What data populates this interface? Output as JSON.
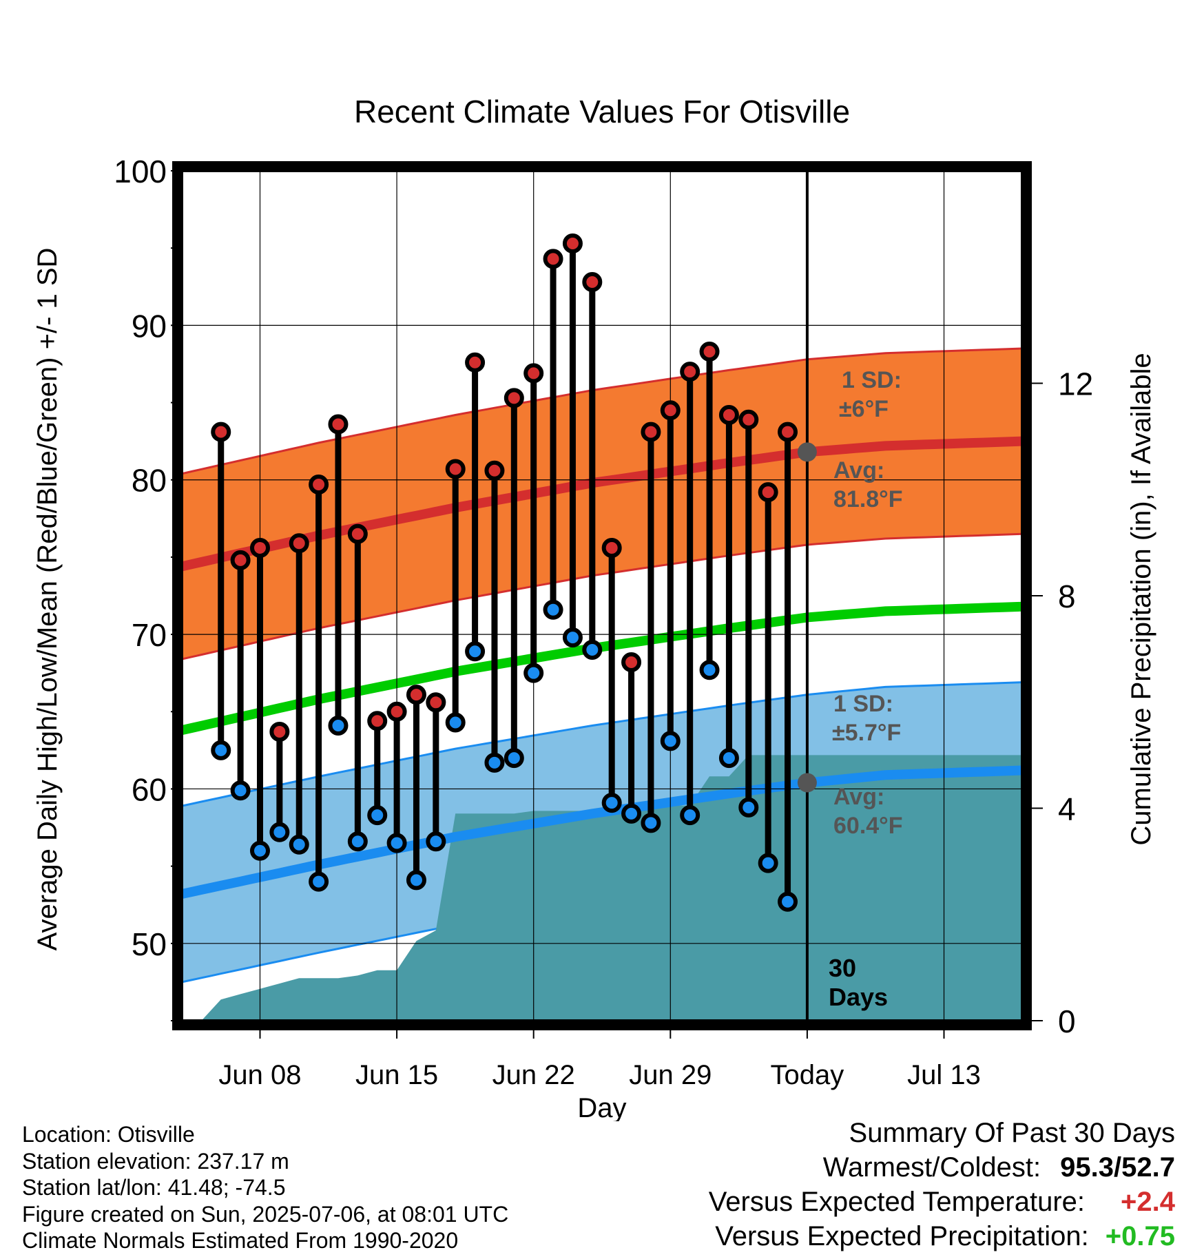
{
  "chart_data": {
    "type": "line",
    "title": "Recent Climate Values For Otisville",
    "xlabel": "Day",
    "ylabel": "Average Daily High/Low/Mean (Red/Blue/Green) +/- 1 SD",
    "y2label": "Cumulative Precipitation (in), If Available",
    "ylim": [
      45,
      100
    ],
    "y2lim": [
      0,
      16
    ],
    "xlim": [
      "2025-06-04",
      "2025-07-17"
    ],
    "grid": true,
    "x_ticks": [
      "Jun 08",
      "Jun 15",
      "Jun 22",
      "Jun 29",
      "Today",
      "Jul 13"
    ],
    "y_ticks": [
      "50",
      "60",
      "70",
      "80",
      "90",
      "100"
    ],
    "y2_ticks": [
      "0",
      "4",
      "8",
      "12"
    ],
    "today": "2025-07-06",
    "days_label": "30\nDays",
    "observed": {
      "dates": [
        "2025-06-06",
        "2025-06-07",
        "2025-06-08",
        "2025-06-09",
        "2025-06-10",
        "2025-06-11",
        "2025-06-12",
        "2025-06-13",
        "2025-06-14",
        "2025-06-15",
        "2025-06-16",
        "2025-06-17",
        "2025-06-18",
        "2025-06-19",
        "2025-06-20",
        "2025-06-21",
        "2025-06-22",
        "2025-06-23",
        "2025-06-24",
        "2025-06-25",
        "2025-06-26",
        "2025-06-27",
        "2025-06-28",
        "2025-06-29",
        "2025-06-30",
        "2025-07-01",
        "2025-07-02",
        "2025-07-03",
        "2025-07-04",
        "2025-07-05"
      ],
      "high": [
        83.1,
        74.8,
        75.6,
        63.7,
        75.9,
        79.7,
        83.6,
        76.5,
        64.4,
        65.0,
        66.1,
        65.6,
        80.7,
        87.6,
        80.6,
        85.3,
        86.9,
        94.3,
        95.3,
        92.8,
        75.6,
        68.2,
        83.1,
        84.5,
        87.0,
        88.3,
        84.2,
        83.9,
        79.2,
        83.1
      ],
      "low": [
        62.5,
        59.9,
        56.0,
        57.2,
        56.4,
        54.0,
        64.1,
        56.6,
        58.3,
        56.5,
        54.1,
        56.6,
        64.3,
        68.9,
        61.7,
        62.0,
        67.5,
        71.6,
        69.8,
        69.0,
        59.1,
        58.4,
        57.8,
        63.1,
        58.3,
        67.7,
        62.0,
        58.8,
        55.2,
        52.7
      ]
    },
    "normals": {
      "dates": [
        "2025-06-04",
        "2025-06-11",
        "2025-06-18",
        "2025-06-25",
        "2025-07-02",
        "2025-07-06",
        "2025-07-10",
        "2025-07-17"
      ],
      "avg_high": [
        74.4,
        76.4,
        78.2,
        79.8,
        81.1,
        81.8,
        82.2,
        82.5
      ],
      "high_sd": 6,
      "avg_low": [
        53.2,
        55.1,
        56.9,
        58.4,
        59.7,
        60.4,
        60.9,
        61.2
      ],
      "low_sd": 5.7,
      "avg_mean": [
        63.8,
        65.8,
        67.6,
        69.1,
        70.4,
        71.1,
        71.5,
        71.8
      ]
    },
    "precipitation": {
      "dates": [
        "2025-06-05",
        "2025-06-06",
        "2025-06-07",
        "2025-06-08",
        "2025-06-09",
        "2025-06-10",
        "2025-06-11",
        "2025-06-12",
        "2025-06-13",
        "2025-06-14",
        "2025-06-15",
        "2025-06-16",
        "2025-06-17",
        "2025-06-18",
        "2025-06-19",
        "2025-06-20",
        "2025-06-21",
        "2025-06-22",
        "2025-06-23",
        "2025-06-24",
        "2025-06-25",
        "2025-06-26",
        "2025-06-27",
        "2025-06-28",
        "2025-06-29",
        "2025-06-30",
        "2025-07-01",
        "2025-07-02",
        "2025-07-03",
        "2025-07-04",
        "2025-07-05",
        "2025-07-17"
      ],
      "cumulative": [
        0.0,
        0.4,
        0.5,
        0.6,
        0.7,
        0.8,
        0.8,
        0.8,
        0.85,
        0.95,
        0.95,
        1.5,
        1.7,
        3.9,
        3.9,
        3.9,
        3.9,
        3.95,
        3.95,
        3.95,
        3.95,
        4.05,
        4.05,
        4.05,
        4.05,
        4.05,
        4.6,
        4.6,
        5.0,
        5.0,
        5.0,
        5.0
      ]
    },
    "labels": {
      "high_sd_label": "1 SD:",
      "high_sd_value": "±6°F",
      "high_avg_label": "Avg:",
      "high_avg_value": "81.8°F",
      "low_sd_label": "1 SD:",
      "low_sd_value": "±5.7°F",
      "low_avg_label": "Avg:",
      "low_avg_value": "60.4°F"
    },
    "colors": {
      "high_band": "#f47a30",
      "high_line": "#d42e2e",
      "low_band": "#82c0e6",
      "low_line": "#1a8cf0",
      "mean_line": "#00cc00",
      "precip": "#4a9ba6",
      "high_dot": "#d42e2e",
      "low_dot": "#1a8cf0",
      "annotation": "#555555"
    }
  },
  "info": {
    "location": "Location: Otisville",
    "elevation": "Station elevation: 237.17 m",
    "latlon": "Station lat/lon: 41.48; -74.5",
    "created": "Figure created on Sun, 2025-07-06, at 08:01 UTC",
    "normals": "Climate Normals Estimated From 1990-2020"
  },
  "summary": {
    "title": "Summary Of Past 30 Days",
    "warm_cold_label": "Warmest/Coldest:",
    "warm_value": "95.3",
    "cold_value": "52.7",
    "separator": "/",
    "temp_label": "Versus Expected Temperature:",
    "temp_value": "+2.4",
    "temp_color": "#d42e2e",
    "precip_label": "Versus Expected Precipitation:",
    "precip_value": "+0.75",
    "precip_color": "#22bb22"
  }
}
